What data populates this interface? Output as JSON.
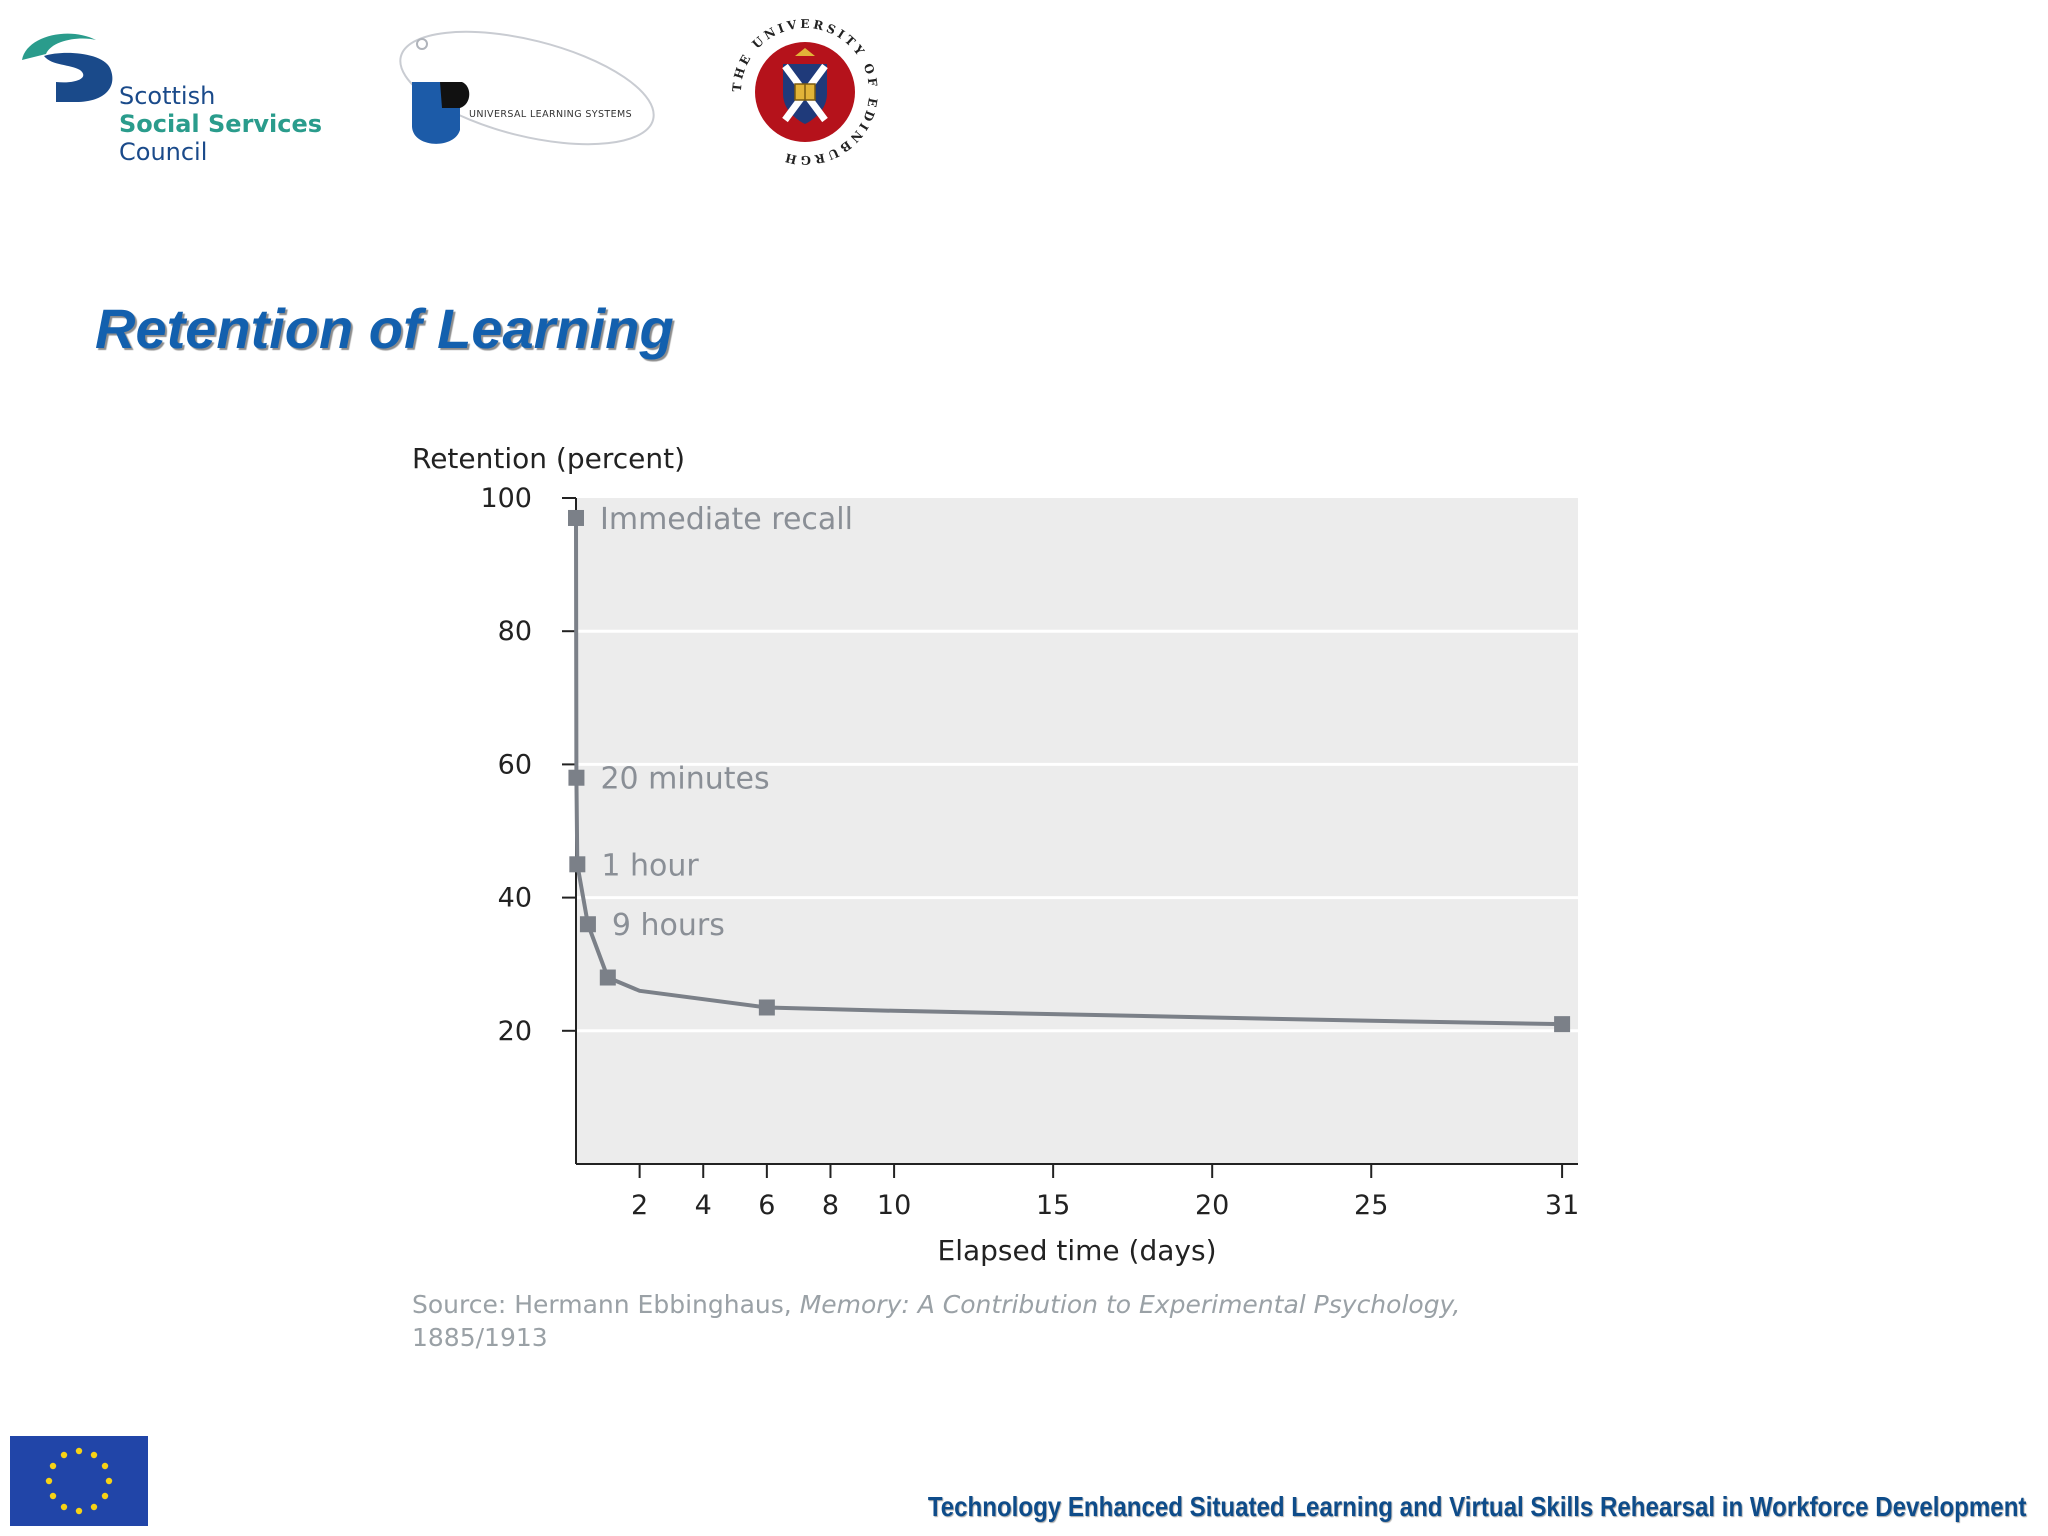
{
  "logos": {
    "sssc": {
      "line1": "Scottish",
      "line2": "Social Services",
      "line3": "Council"
    },
    "uls": {
      "text": "UNIVERSAL LEARNING SYSTEMS"
    },
    "uoe": {
      "text": "THE UNIVERSITY OF EDINBURGH"
    }
  },
  "slide": {
    "title": "Retention of Learning",
    "footer": "Technology Enhanced Situated Learning and Virtual Skills Rehearsal in Workforce Development"
  },
  "colors": {
    "title": "#1360ae",
    "sssc_teal": "#2a9c8c",
    "sssc_navy": "#1a4a8a",
    "uoe_red": "#b5121b",
    "uoe_blue": "#1f3a7a",
    "eu_blue": "#2145a8",
    "eu_star": "#f7d214",
    "curve": "#7b8088",
    "plot_bg": "#ececec"
  },
  "chart_data": {
    "type": "line",
    "ylabel": "Retention (percent)",
    "xlabel": "Elapsed time (days)",
    "xlim": [
      0,
      31.5
    ],
    "ylim": [
      0,
      100
    ],
    "yticks": [
      20,
      40,
      60,
      80,
      100
    ],
    "xticks": [
      2,
      4,
      6,
      8,
      10,
      15,
      20,
      25,
      31
    ],
    "grid": true,
    "series": [
      {
        "points": [
          {
            "x": 0,
            "y": 97
          },
          {
            "x": 0.014,
            "y": 58
          },
          {
            "x": 0.042,
            "y": 45
          },
          {
            "x": 0.375,
            "y": 36
          },
          {
            "x": 1,
            "y": 28
          },
          {
            "x": 2,
            "y": 26
          },
          {
            "x": 6,
            "y": 23.5
          },
          {
            "x": 10,
            "y": 23
          },
          {
            "x": 15,
            "y": 22.5
          },
          {
            "x": 20,
            "y": 22
          },
          {
            "x": 25,
            "y": 21.5
          },
          {
            "x": 31,
            "y": 21
          }
        ],
        "markers_x": [
          0,
          0.014,
          0.042,
          0.375,
          1,
          6,
          31
        ]
      }
    ],
    "annotations": [
      {
        "text": "Immediate recall",
        "x": 0,
        "y": 97
      },
      {
        "text": "20 minutes",
        "x": 0.014,
        "y": 58
      },
      {
        "text": "1 hour",
        "x": 0.042,
        "y": 45
      },
      {
        "text": "9 hours",
        "x": 0.375,
        "y": 36
      }
    ],
    "source": {
      "prefix": "Source: Hermann Ebbinghaus,",
      "title": "Memory: A Contribution to Experimental Psychology,",
      "years": "1885/1913"
    }
  }
}
